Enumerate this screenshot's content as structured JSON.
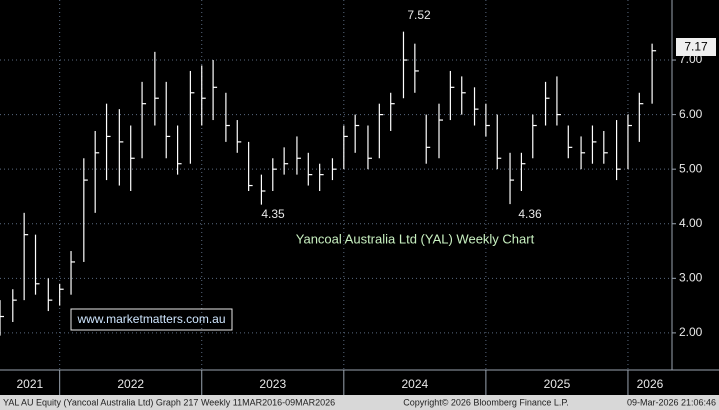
{
  "chart_data": {
    "type": "hlc",
    "title": "Yancoal Australia Ltd (YAL) Weekly Chart",
    "url": "www.marketmatters.com.au",
    "annotations": [
      "7.52",
      "4.35",
      "4.36"
    ],
    "last_price_label": "7.17",
    "footer": [
      "YAL AU Equity (Yancoal Australia Ltd) Graph 217 Weekly 11MAR2016-09MAR2026",
      "Copyright© 2026 Bloomberg Finance L.P.",
      "09-Mar-2026 21:06:46"
    ],
    "color": "#ffffff",
    "grid": true,
    "xlim": [
      2021.58,
      2026.31
    ],
    "xticks": [
      {
        "value": 2021,
        "label": "2021"
      },
      {
        "value": 2022,
        "label": "2022"
      },
      {
        "value": 2023,
        "label": "2023"
      },
      {
        "value": 2024,
        "label": "2024"
      },
      {
        "value": 2025,
        "label": "2025"
      },
      {
        "value": 2026,
        "label": "2026"
      }
    ],
    "ylim": [
      1.32,
      8.1
    ],
    "yticks": [
      {
        "value": 2,
        "label": "2.00"
      },
      {
        "value": 3,
        "label": "3.00"
      },
      {
        "value": 4,
        "label": "4.00"
      },
      {
        "value": 5,
        "label": "5.00"
      },
      {
        "value": 6,
        "label": "6.00"
      },
      {
        "value": 7,
        "label": "7.00"
      }
    ],
    "x": [
      2021.58,
      2021.67,
      2021.75,
      2021.83,
      2021.92,
      2022.0,
      2022.08,
      2022.17,
      2022.25,
      2022.33,
      2022.42,
      2022.5,
      2022.58,
      2022.67,
      2022.75,
      2022.83,
      2022.92,
      2023.0,
      2023.08,
      2023.17,
      2023.25,
      2023.33,
      2023.42,
      2023.5,
      2023.58,
      2023.67,
      2023.75,
      2023.83,
      2023.92,
      2024.0,
      2024.08,
      2024.17,
      2024.25,
      2024.33,
      2024.42,
      2024.5,
      2024.58,
      2024.67,
      2024.75,
      2024.83,
      2024.92,
      2025.0,
      2025.08,
      2025.17,
      2025.25,
      2025.33,
      2025.42,
      2025.5,
      2025.58,
      2025.67,
      2025.75,
      2025.83,
      2025.92,
      2026.0,
      2026.08,
      2026.17
    ],
    "high": [
      2.6,
      2.8,
      4.2,
      3.8,
      3.0,
      2.9,
      3.5,
      5.2,
      5.7,
      6.2,
      6.1,
      5.8,
      6.6,
      7.15,
      6.6,
      5.8,
      6.8,
      6.9,
      7.0,
      6.4,
      5.9,
      5.5,
      4.9,
      5.2,
      5.4,
      5.6,
      5.3,
      5.1,
      5.2,
      5.8,
      6.0,
      5.8,
      6.2,
      6.4,
      7.52,
      7.3,
      6.0,
      6.2,
      6.8,
      6.7,
      6.5,
      6.2,
      6.0,
      5.3,
      5.3,
      6.0,
      6.6,
      6.7,
      5.8,
      5.6,
      5.8,
      5.7,
      5.9,
      6.0,
      6.4,
      7.3
    ],
    "low": [
      1.95,
      2.2,
      2.6,
      2.7,
      2.4,
      2.5,
      2.7,
      3.3,
      4.2,
      4.8,
      4.7,
      4.6,
      5.2,
      5.8,
      5.2,
      4.9,
      5.1,
      5.8,
      5.9,
      5.5,
      5.3,
      4.6,
      4.35,
      4.6,
      4.9,
      4.9,
      4.7,
      4.6,
      4.8,
      5.0,
      5.3,
      5.0,
      5.2,
      5.7,
      6.3,
      6.4,
      5.1,
      5.2,
      5.9,
      6.0,
      5.8,
      5.6,
      5.0,
      4.36,
      4.6,
      5.2,
      5.8,
      5.8,
      5.2,
      5.0,
      5.1,
      5.1,
      4.8,
      5.0,
      5.5,
      6.2
    ],
    "close": [
      2.3,
      2.6,
      3.8,
      2.9,
      2.6,
      2.8,
      3.3,
      4.8,
      5.3,
      5.6,
      5.5,
      5.2,
      6.2,
      6.3,
      5.6,
      5.1,
      6.4,
      6.3,
      6.5,
      5.8,
      5.5,
      4.7,
      4.6,
      5.0,
      5.1,
      5.2,
      4.9,
      4.9,
      5.0,
      5.6,
      5.8,
      5.2,
      6.0,
      6.2,
      7.0,
      6.8,
      5.4,
      5.9,
      6.5,
      6.4,
      6.1,
      5.8,
      5.2,
      4.8,
      5.1,
      5.8,
      6.3,
      6.0,
      5.4,
      5.3,
      5.5,
      5.3,
      5.0,
      5.8,
      6.2,
      7.17
    ]
  }
}
